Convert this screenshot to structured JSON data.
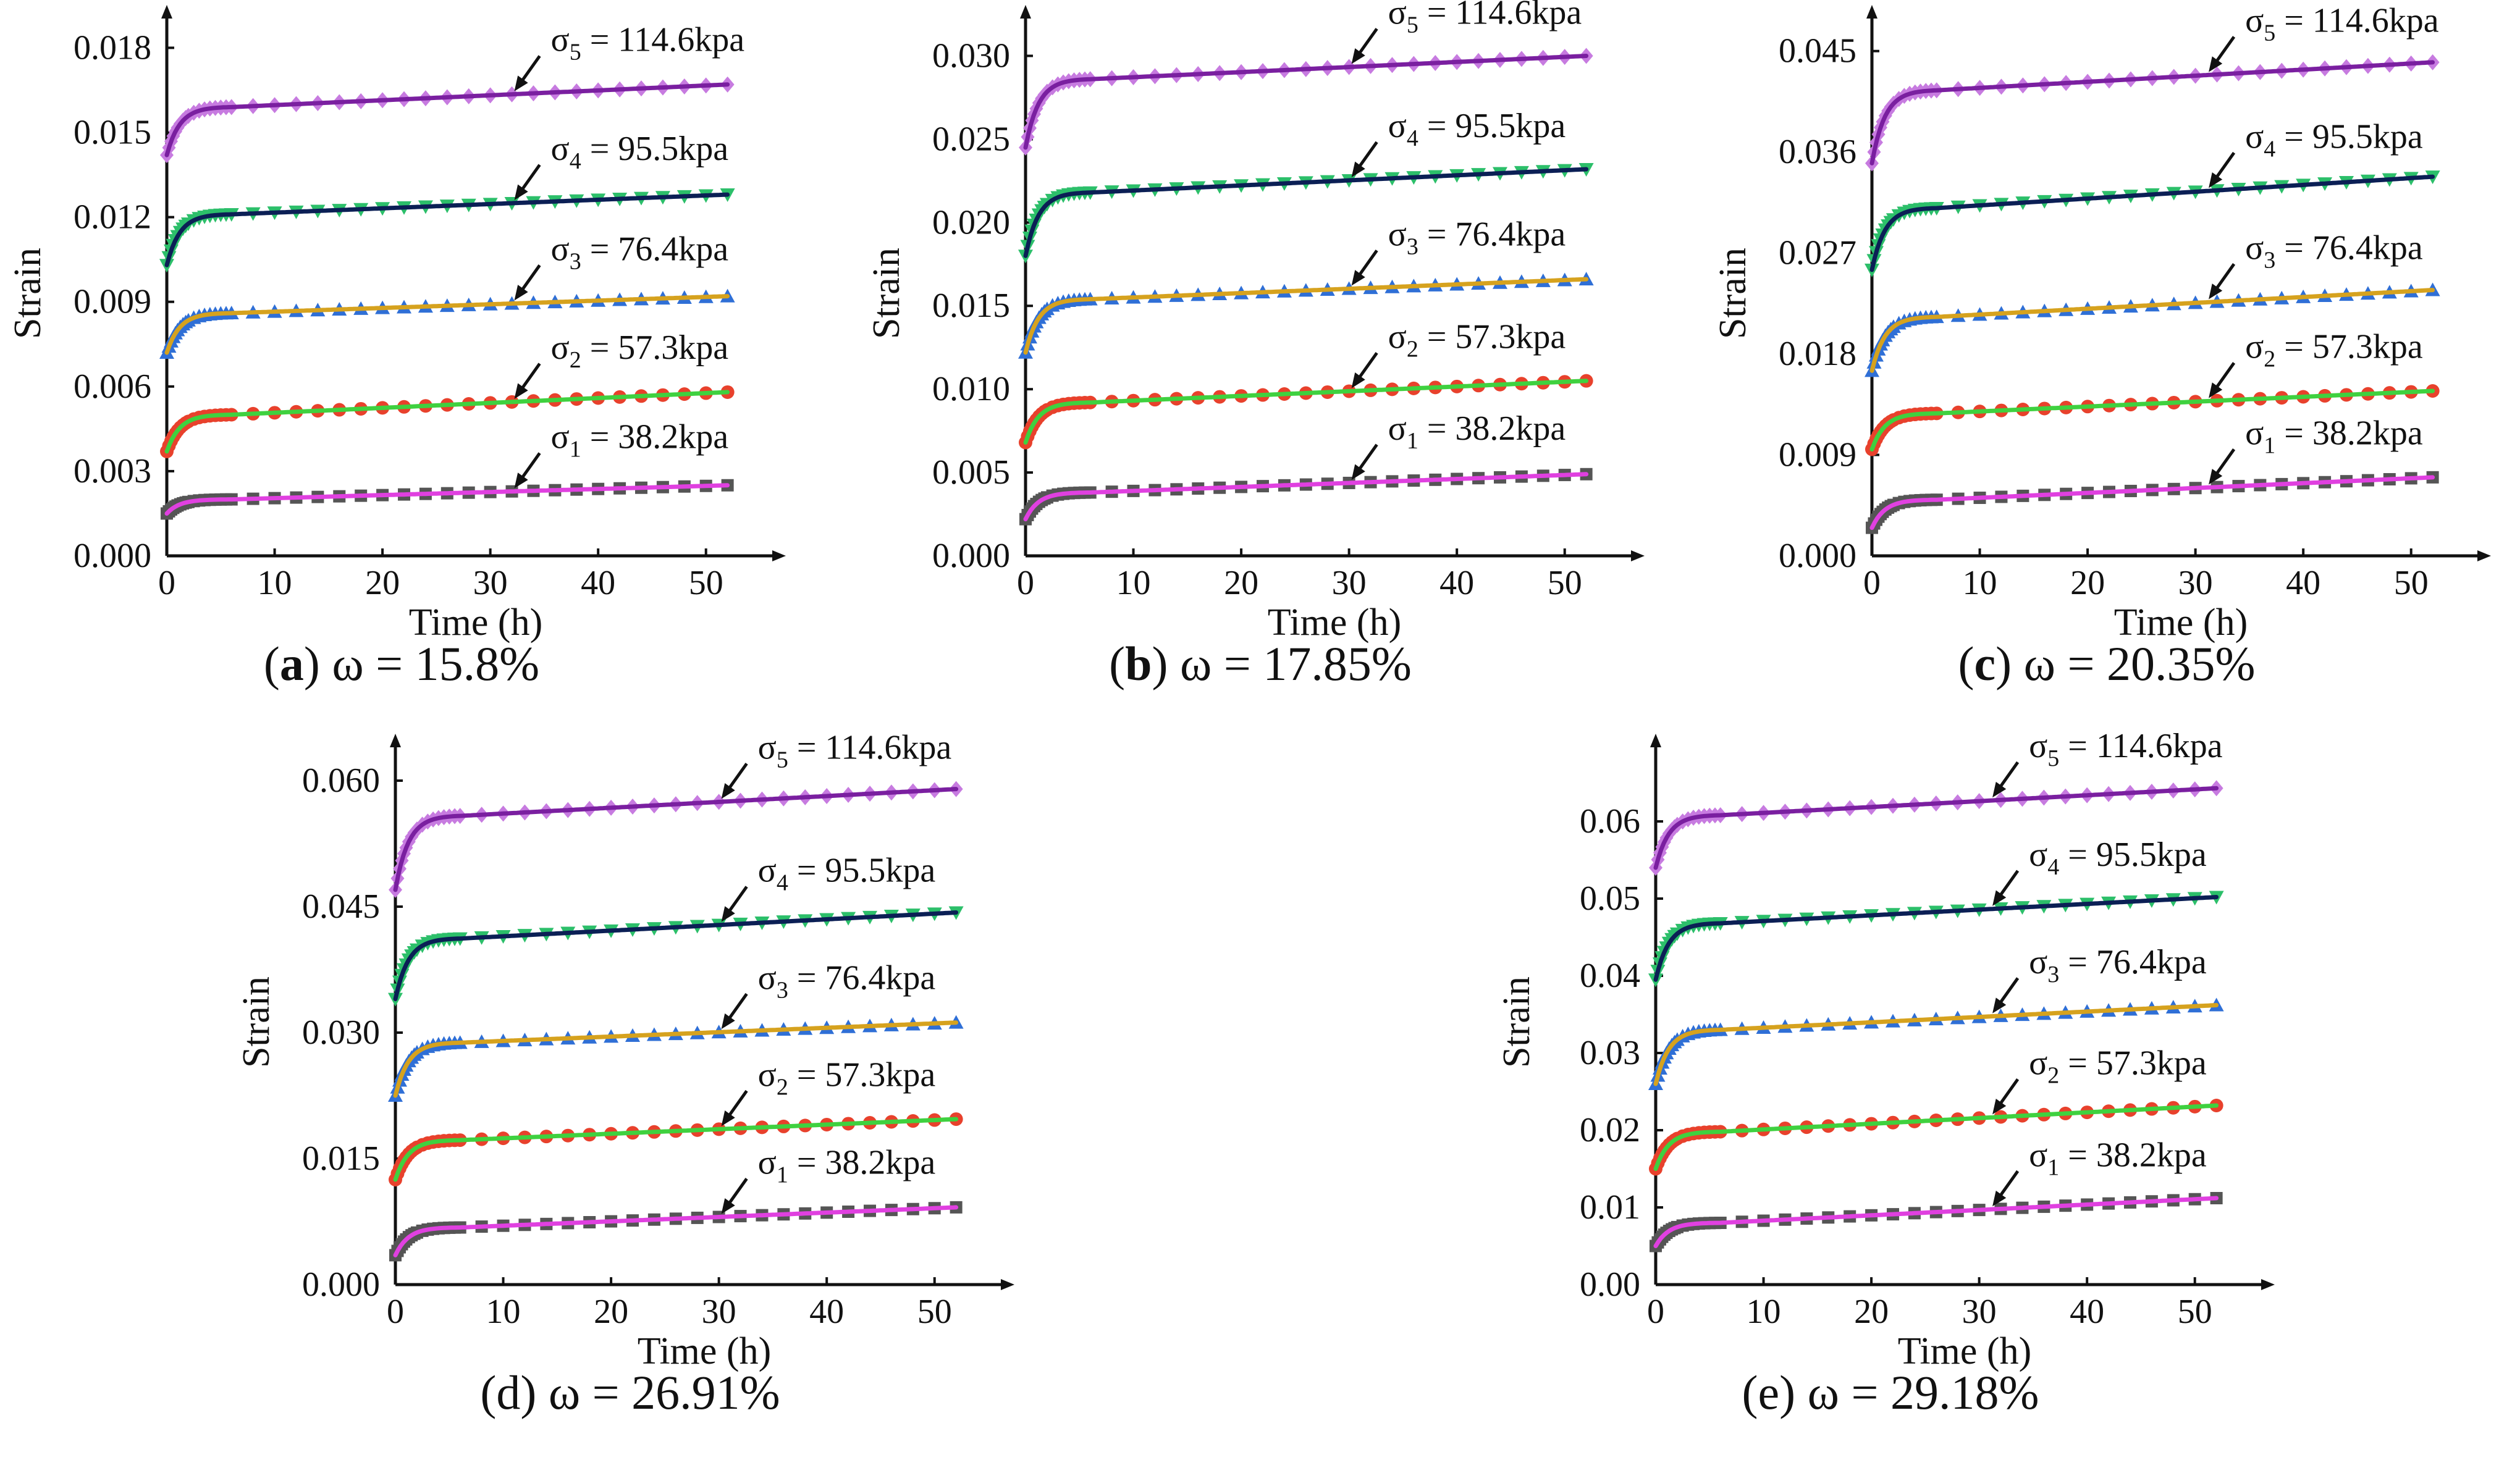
{
  "figure": {
    "background": "#ffffff",
    "marker_styles": [
      {
        "shape": "square",
        "color": "#555555",
        "line_color": "#e040e0"
      },
      {
        "shape": "circle",
        "color": "#e8412c",
        "line_color": "#3fd13f"
      },
      {
        "shape": "triangle-up",
        "color": "#2f6fd6",
        "line_color": "#d6a21e"
      },
      {
        "shape": "triangle-down",
        "color": "#2cbf6a",
        "line_color": "#0b1f55"
      },
      {
        "shape": "diamond",
        "color": "#c77be0",
        "line_color": "#7a1fa0"
      }
    ],
    "annotation_prefix": "σ",
    "annotation_unit": "kpa"
  },
  "chart_data": [
    {
      "type": "line",
      "id": "a",
      "caption": {
        "letter": "(a)",
        "text": "ω = 15.8%"
      },
      "xlabel": "Time (h)",
      "ylabel": "Strain",
      "xlim": [
        0,
        55
      ],
      "ylim": [
        0,
        0.0186
      ],
      "xticks": [
        0,
        10,
        20,
        30,
        40,
        50
      ],
      "xtick_labels": [
        "0",
        "10",
        "20",
        "30",
        "40",
        "50"
      ],
      "yticks": [
        0,
        0.003,
        0.006,
        0.009,
        0.012,
        0.015,
        0.018
      ],
      "ytick_labels": [
        "0.000",
        "0.003",
        "0.006",
        "0.009",
        "0.012",
        "0.015",
        "0.018"
      ],
      "annotation_x": 32,
      "series": [
        {
          "name": "σ1 = 38.2kpa",
          "subscript": "1",
          "stress": "38.2",
          "s0": 0.0015,
          "s6": 0.002,
          "s52": 0.0025
        },
        {
          "name": "σ2 = 57.3kpa",
          "subscript": "2",
          "stress": "57.3",
          "s0": 0.0037,
          "s6": 0.005,
          "s52": 0.0058
        },
        {
          "name": "σ3 = 76.4kpa",
          "subscript": "3",
          "stress": "76.4",
          "s0": 0.0072,
          "s6": 0.0086,
          "s52": 0.0092
        },
        {
          "name": "σ4 = 95.5kpa",
          "subscript": "4",
          "stress": "95.5",
          "s0": 0.0103,
          "s6": 0.0121,
          "s52": 0.0128
        },
        {
          "name": "σ5 = 114.6kpa",
          "subscript": "5",
          "stress": "114.6",
          "s0": 0.0142,
          "s6": 0.0159,
          "s52": 0.0167
        }
      ]
    },
    {
      "type": "line",
      "id": "b",
      "caption": {
        "letter": "(b)",
        "text": "ω = 17.85%"
      },
      "xlabel": "Time (h)",
      "ylabel": "Strain",
      "xlim": [
        0,
        55
      ],
      "ylim": [
        0,
        0.0315
      ],
      "xticks": [
        0,
        10,
        20,
        30,
        40,
        50
      ],
      "xtick_labels": [
        "0",
        "10",
        "20",
        "30",
        "40",
        "50"
      ],
      "yticks": [
        0,
        0.005,
        0.01,
        0.015,
        0.02,
        0.025,
        0.03
      ],
      "ytick_labels": [
        "0.000",
        "0.005",
        "0.010",
        "0.015",
        "0.020",
        "0.025",
        "0.030"
      ],
      "annotation_x": 30,
      "series": [
        {
          "name": "σ1 = 38.2kpa",
          "subscript": "1",
          "stress": "38.2",
          "s0": 0.0022,
          "s6": 0.0038,
          "s52": 0.0049
        },
        {
          "name": "σ2 = 57.3kpa",
          "subscript": "2",
          "stress": "57.3",
          "s0": 0.0068,
          "s6": 0.0092,
          "s52": 0.0105
        },
        {
          "name": "σ3 = 76.4kpa",
          "subscript": "3",
          "stress": "76.4",
          "s0": 0.0122,
          "s6": 0.0154,
          "s52": 0.0166
        },
        {
          "name": "σ4 = 95.5kpa",
          "subscript": "4",
          "stress": "95.5",
          "s0": 0.018,
          "s6": 0.0218,
          "s52": 0.0232
        },
        {
          "name": "σ5 = 114.6kpa",
          "subscript": "5",
          "stress": "114.6",
          "s0": 0.0245,
          "s6": 0.0286,
          "s52": 0.03
        }
      ]
    },
    {
      "type": "line",
      "id": "c",
      "caption": {
        "letter": "(c)",
        "text": "ω = 20.35%"
      },
      "xlabel": "Time (h)",
      "ylabel": "Strain",
      "xlim": [
        0,
        55
      ],
      "ylim": [
        0,
        0.0468
      ],
      "xticks": [
        0,
        10,
        20,
        30,
        40,
        50
      ],
      "xtick_labels": [
        "0",
        "10",
        "20",
        "30",
        "40",
        "50"
      ],
      "yticks": [
        0,
        0.009,
        0.018,
        0.027,
        0.036,
        0.045
      ],
      "ytick_labels": [
        "0.000",
        "0.009",
        "0.018",
        "0.027",
        "0.036",
        "0.045"
      ],
      "annotation_x": 31,
      "series": [
        {
          "name": "σ1 = 38.2kpa",
          "subscript": "1",
          "stress": "38.2",
          "s0": 0.0025,
          "s6": 0.005,
          "s52": 0.007
        },
        {
          "name": "σ2 = 57.3kpa",
          "subscript": "2",
          "stress": "57.3",
          "s0": 0.0095,
          "s6": 0.0127,
          "s52": 0.0147
        },
        {
          "name": "σ3 = 76.4kpa",
          "subscript": "3",
          "stress": "76.4",
          "s0": 0.0165,
          "s6": 0.0213,
          "s52": 0.0237
        },
        {
          "name": "σ4 = 95.5kpa",
          "subscript": "4",
          "stress": "95.5",
          "s0": 0.0255,
          "s6": 0.031,
          "s52": 0.0338
        },
        {
          "name": "σ5 = 114.6kpa",
          "subscript": "5",
          "stress": "114.6",
          "s0": 0.035,
          "s6": 0.0415,
          "s52": 0.044
        }
      ]
    },
    {
      "type": "line",
      "id": "d",
      "caption": {
        "letter": "(d)",
        "text": "ω = 26.91%"
      },
      "xlabel": "Time (h)",
      "ylabel": "Strain",
      "xlim": [
        0,
        55
      ],
      "ylim": [
        0,
        0.0625
      ],
      "xticks": [
        0,
        10,
        20,
        30,
        40,
        50
      ],
      "xtick_labels": [
        "0",
        "10",
        "20",
        "30",
        "40",
        "50"
      ],
      "yticks": [
        0,
        0.015,
        0.03,
        0.045,
        0.06
      ],
      "ytick_labels": [
        "0.000",
        "0.015",
        "0.030",
        "0.045",
        "0.060"
      ],
      "annotation_x": 30,
      "series": [
        {
          "name": "σ1 = 38.2kpa",
          "subscript": "1",
          "stress": "38.2",
          "s0": 0.0035,
          "s6": 0.0068,
          "s52": 0.0092
        },
        {
          "name": "σ2 = 57.3kpa",
          "subscript": "2",
          "stress": "57.3",
          "s0": 0.0125,
          "s6": 0.0172,
          "s52": 0.0197
        },
        {
          "name": "σ3 = 76.4kpa",
          "subscript": "3",
          "stress": "76.4",
          "s0": 0.0225,
          "s6": 0.0288,
          "s52": 0.0312
        },
        {
          "name": "σ4 = 95.5kpa",
          "subscript": "4",
          "stress": "95.5",
          "s0": 0.034,
          "s6": 0.0412,
          "s52": 0.0443
        },
        {
          "name": "σ5 = 114.6kpa",
          "subscript": "5",
          "stress": "114.6",
          "s0": 0.047,
          "s6": 0.0558,
          "s52": 0.059
        }
      ]
    },
    {
      "type": "line",
      "id": "e",
      "caption": {
        "letter": "(e)",
        "text": "ω = 29.18%"
      },
      "xlabel": "Time (h)",
      "ylabel": "Strain",
      "xlim": [
        0,
        55
      ],
      "ylim": [
        0,
        0.068
      ],
      "xticks": [
        0,
        10,
        20,
        30,
        40,
        50
      ],
      "xtick_labels": [
        "0",
        "10",
        "20",
        "30",
        "40",
        "50"
      ],
      "yticks": [
        0,
        0.01,
        0.02,
        0.03,
        0.04,
        0.05,
        0.06
      ],
      "ytick_labels": [
        "0.00",
        "0.01",
        "0.02",
        "0.03",
        "0.04",
        "0.05",
        "0.06"
      ],
      "annotation_x": 31,
      "series": [
        {
          "name": "σ1 = 38.2kpa",
          "subscript": "1",
          "stress": "38.2",
          "s0": 0.005,
          "s6": 0.008,
          "s52": 0.0112
        },
        {
          "name": "σ2 = 57.3kpa",
          "subscript": "2",
          "stress": "57.3",
          "s0": 0.015,
          "s6": 0.0198,
          "s52": 0.0232
        },
        {
          "name": "σ3 = 76.4kpa",
          "subscript": "3",
          "stress": "76.4",
          "s0": 0.026,
          "s6": 0.033,
          "s52": 0.0362
        },
        {
          "name": "σ4 = 95.5kpa",
          "subscript": "4",
          "stress": "95.5",
          "s0": 0.0395,
          "s6": 0.0468,
          "s52": 0.0502
        },
        {
          "name": "σ5 = 114.6kpa",
          "subscript": "5",
          "stress": "114.6",
          "s0": 0.054,
          "s6": 0.0608,
          "s52": 0.0643
        }
      ]
    }
  ]
}
